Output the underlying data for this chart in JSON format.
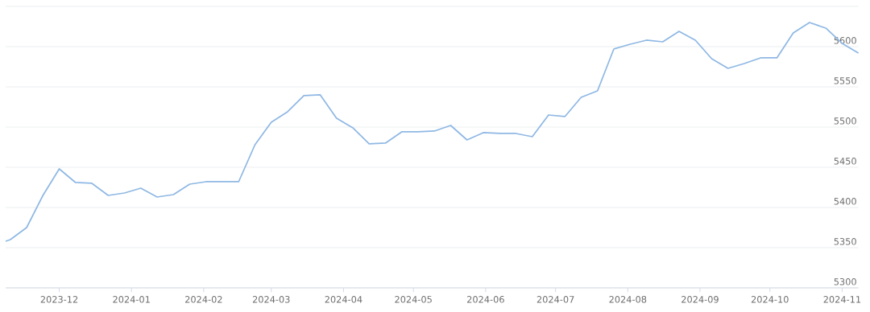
{
  "chart_data": {
    "type": "line",
    "color": "#8fb8e4",
    "grid": "y",
    "marker": "none",
    "line_style": "solid",
    "x": [
      "2023-11-08",
      "2023-11-10",
      "2023-11-17",
      "2023-11-24",
      "2023-12-01",
      "2023-12-08",
      "2023-12-15",
      "2023-12-22",
      "2023-12-29",
      "2024-01-05",
      "2024-01-12",
      "2024-01-19",
      "2024-01-26",
      "2024-02-02",
      "2024-02-09",
      "2024-02-16",
      "2024-02-23",
      "2024-03-01",
      "2024-03-08",
      "2024-03-15",
      "2024-03-22",
      "2024-03-29",
      "2024-04-05",
      "2024-04-12",
      "2024-04-19",
      "2024-04-26",
      "2024-05-03",
      "2024-05-10",
      "2024-05-17",
      "2024-05-24",
      "2024-05-31",
      "2024-06-07",
      "2024-06-14",
      "2024-06-21",
      "2024-06-28",
      "2024-07-05",
      "2024-07-12",
      "2024-07-19",
      "2024-07-26",
      "2024-08-02",
      "2024-08-09",
      "2024-08-16",
      "2024-08-23",
      "2024-08-30",
      "2024-09-06",
      "2024-09-13",
      "2024-09-20",
      "2024-09-27",
      "2024-10-04",
      "2024-10-11",
      "2024-10-18",
      "2024-10-25",
      "2024-11-01",
      "2024-11-08"
    ],
    "values": [
      5358,
      5360,
      5375,
      5415,
      5448,
      5431,
      5430,
      5415,
      5418,
      5424,
      5413,
      5416,
      5429,
      5432,
      5432,
      5432,
      5478,
      5506,
      5519,
      5539,
      5540,
      5511,
      5499,
      5479,
      5480,
      5494,
      5494,
      5495,
      5502,
      5484,
      5493,
      5492,
      5492,
      5488,
      5515,
      5513,
      5537,
      5545,
      5597,
      5603,
      5608,
      5606,
      5619,
      5608,
      5585,
      5573,
      5579,
      5586,
      5586,
      5617,
      5630,
      5623,
      5604,
      5592
    ],
    "xlim": [
      "2023-11-08",
      "2024-11-08"
    ],
    "xticks": [
      "2023-12",
      "2024-01",
      "2024-02",
      "2024-03",
      "2024-04",
      "2024-05",
      "2024-06",
      "2024-07",
      "2024-08",
      "2024-09",
      "2024-10",
      "2024-11"
    ],
    "ylim": [
      5300,
      5650
    ],
    "yticks": [
      5300,
      5350,
      5400,
      5450,
      5500,
      5550,
      5600,
      {
        "value": 5650,
        "label": null
      }
    ]
  }
}
